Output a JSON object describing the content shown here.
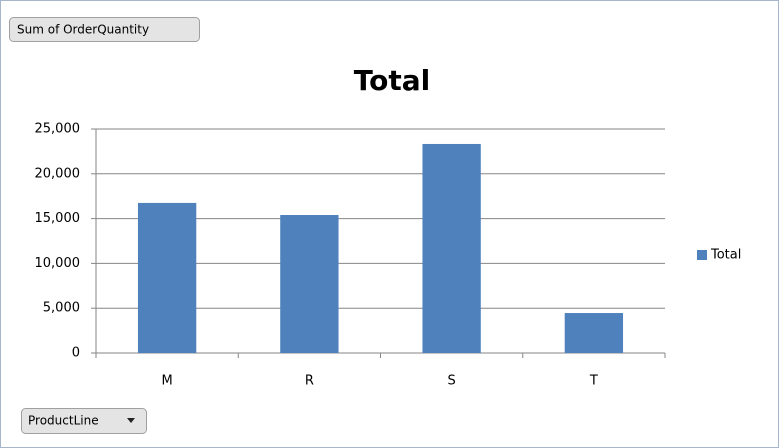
{
  "chart_data": {
    "type": "bar",
    "title": "Total",
    "value_field": "Sum of OrderQuantity",
    "axis_field": "ProductLine",
    "categories": [
      "M",
      "R",
      "S",
      "T"
    ],
    "series": [
      {
        "name": "Total",
        "color": "#4f81bd",
        "values": [
          16750,
          15400,
          23330,
          4460
        ]
      }
    ],
    "ylim": [
      0,
      25000
    ],
    "yticks": [
      0,
      {
        "value": 5000,
        "label": "5,000"
      },
      {
        "value": 10000,
        "label": "10,000"
      },
      {
        "value": 15000,
        "label": "15,000"
      },
      {
        "value": 20000,
        "label": "20,000"
      },
      {
        "value": 25000,
        "label": "25,000"
      }
    ],
    "grid": true,
    "legend": "right"
  }
}
